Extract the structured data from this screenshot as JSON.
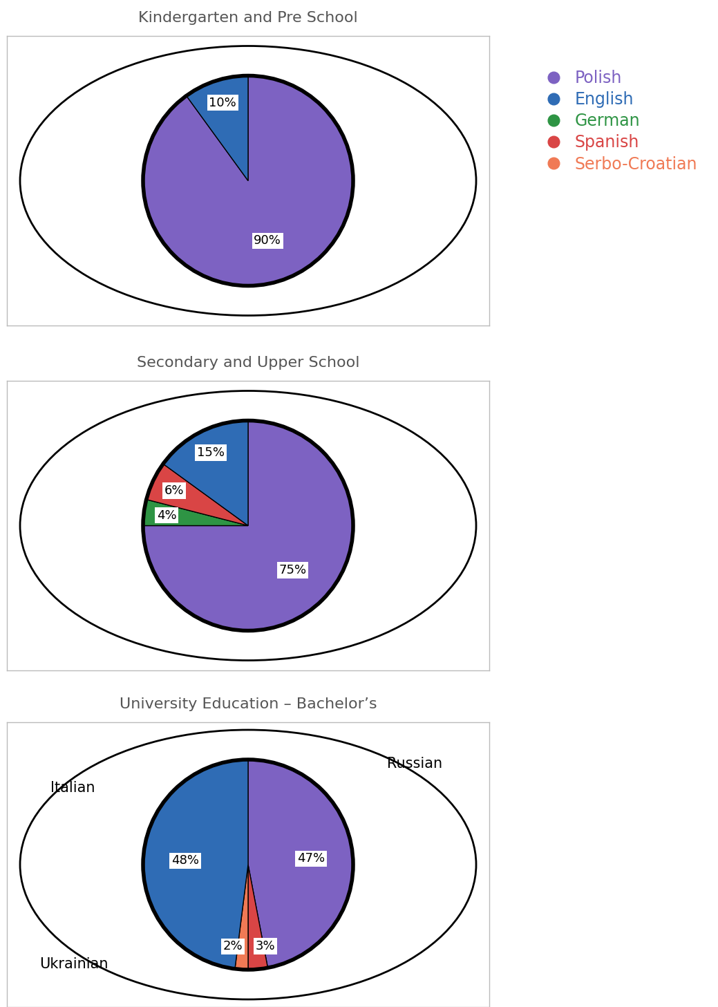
{
  "chart_data": [
    {
      "type": "pie",
      "title": "Kindergarten and Pre School",
      "categories": [
        "Polish",
        "English"
      ],
      "values": [
        90,
        10
      ],
      "value_labels": [
        "90%",
        "10%"
      ],
      "data_labels": true
    },
    {
      "type": "pie",
      "title": "Secondary and Upper School",
      "categories": [
        "Polish",
        "German",
        "Spanish",
        "English"
      ],
      "values": [
        75,
        4,
        6,
        15
      ],
      "value_labels": [
        "75%",
        "4%",
        "6%",
        "15%"
      ],
      "data_labels": true
    },
    {
      "type": "pie",
      "title": "University Education – Bachelor’s",
      "categories": [
        "Polish",
        "Spanish",
        "Serbo-Croatian",
        "English"
      ],
      "values": [
        47,
        3,
        2,
        48
      ],
      "value_labels": [
        "47%",
        "3%",
        "2%",
        "48%"
      ],
      "data_labels": true,
      "annotations": [
        "Italian",
        "Russian",
        "Ukrainian"
      ]
    }
  ],
  "legend": {
    "position": "upper right",
    "entries": [
      {
        "name": "Polish",
        "color": "#7d62c2"
      },
      {
        "name": "English",
        "color": "#2f6cb5"
      },
      {
        "name": "German",
        "color": "#2e9444"
      },
      {
        "name": "Spanish",
        "color": "#d94545"
      },
      {
        "name": "Serbo-Croatian",
        "color": "#f07a55"
      }
    ]
  }
}
